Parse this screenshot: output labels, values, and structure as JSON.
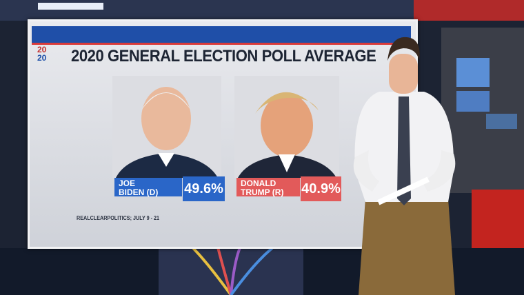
{
  "logo": {
    "top": "20",
    "bottom": "20"
  },
  "title": "2020 GENERAL ELECTION POLL AVERAGE",
  "candidates": [
    {
      "name_lines": [
        "JOE",
        "BIDEN (D)"
      ],
      "value": "49.6%"
    },
    {
      "name_lines": [
        "DONALD",
        "TRUMP (R)"
      ],
      "value": "40.9%"
    }
  ],
  "source": "REALCLEARPOLITICS; JULY 9 - 21"
}
